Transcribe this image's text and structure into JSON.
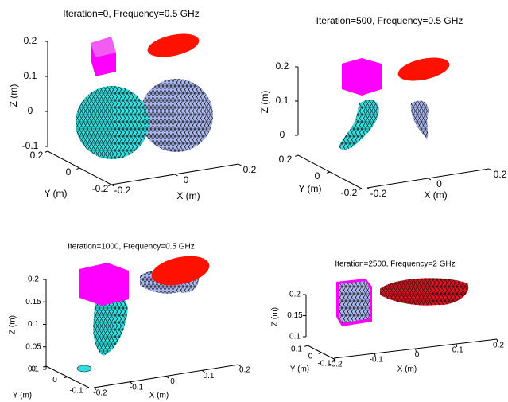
{
  "chart_data": [
    {
      "type": "mesh3d",
      "title": "Iteration=0, Frequency=0.5 GHz",
      "xlabel": "X (m)",
      "ylabel": "Y (m)",
      "zlabel": "Z (m)",
      "xlim": [
        -0.2,
        0.2
      ],
      "ylim": [
        -0.2,
        0.2
      ],
      "zlim": [
        -0.1,
        0.2
      ],
      "xticks": [
        -0.2,
        0,
        0.2
      ],
      "yticks": [
        -0.2,
        0,
        0.2
      ],
      "zticks": [
        -0.1,
        0,
        0.1,
        0.2
      ]
    },
    {
      "type": "mesh3d",
      "title": "Iteration=500, Frequency=0.5 GHz",
      "xlabel": "X (m)",
      "ylabel": "Y (m)",
      "zlabel": "Z (m)",
      "xlim": [
        -0.2,
        0.2
      ],
      "ylim": [
        -0.2,
        0.2
      ],
      "zlim": [
        0,
        0.2
      ],
      "xticks": [
        -0.2,
        0,
        0.2
      ],
      "yticks": [
        -0.2,
        0,
        0.2
      ],
      "zticks": [
        0,
        0.1,
        0.2
      ]
    },
    {
      "type": "mesh3d",
      "title": "Iteration=1000, Frequency=0.5 GHz",
      "xlabel": "X (m)",
      "ylabel": "Y (m)",
      "zlabel": "Z (m)",
      "xlim": [
        -0.2,
        0.2
      ],
      "ylim": [
        -0.1,
        0.1
      ],
      "zlim": [
        0,
        0.2
      ],
      "xticks": [
        -0.2,
        -0.1,
        0,
        0.1,
        0.2
      ],
      "yticks": [
        -0.1,
        0,
        0.1
      ],
      "zticks": [
        0,
        0.05,
        0.1,
        0.15,
        0.2
      ]
    },
    {
      "type": "mesh3d",
      "title": "Iteration=2500, Frequency=2 GHz",
      "xlabel": "X (m)",
      "ylabel": "Y (m)",
      "zlabel": "Z (m)",
      "xlim": [
        -0.2,
        0.2
      ],
      "ylim": [
        -0.1,
        0.1
      ],
      "zlim": [
        0.1,
        0.2
      ],
      "xticks": [
        -0.2,
        -0.1,
        0,
        0.1,
        0.2
      ],
      "yticks": [
        -0.1,
        0,
        0.1
      ],
      "zticks": [
        0.1,
        0.15,
        0.2
      ]
    }
  ]
}
